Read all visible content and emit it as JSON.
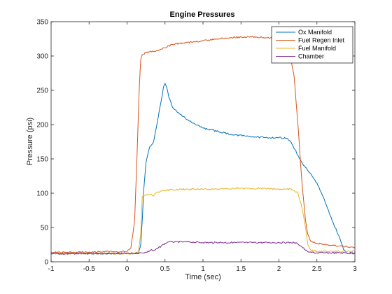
{
  "chart_data": {
    "type": "line",
    "title": "Engine Pressures",
    "xlabel": "Time (sec)",
    "ylabel": "Pressure (psi)",
    "xlim": [
      -1,
      3
    ],
    "ylim": [
      0,
      350
    ],
    "xticks": [
      -1,
      -0.5,
      0,
      0.5,
      1,
      1.5,
      2,
      2.5,
      3
    ],
    "xtick_labels": [
      "-1",
      "-0.5",
      "0",
      "0.5",
      "1",
      "1.5",
      "2",
      "2.5",
      "3"
    ],
    "yticks": [
      0,
      50,
      100,
      150,
      200,
      250,
      300,
      350
    ],
    "ytick_labels": [
      "0",
      "50",
      "100",
      "150",
      "200",
      "250",
      "300",
      "350"
    ],
    "grid": false,
    "legend_position": "top-right",
    "series": [
      {
        "name": "Ox Manifold",
        "color": "#0072BD",
        "x": [
          -1,
          -0.5,
          0,
          0.1,
          0.15,
          0.18,
          0.2,
          0.22,
          0.25,
          0.3,
          0.35,
          0.4,
          0.45,
          0.48,
          0.5,
          0.52,
          0.55,
          0.6,
          0.7,
          0.8,
          0.9,
          1.0,
          1.2,
          1.4,
          1.6,
          1.8,
          2.0,
          2.1,
          2.15,
          2.2,
          2.25,
          2.3,
          2.4,
          2.5,
          2.6,
          2.7,
          2.8,
          2.85,
          2.9,
          3.0
        ],
        "y": [
          12,
          12,
          12,
          12,
          13,
          25,
          60,
          105,
          145,
          168,
          175,
          205,
          235,
          255,
          260,
          255,
          240,
          225,
          215,
          207,
          200,
          195,
          190,
          185,
          183,
          181,
          181,
          180,
          176,
          165,
          155,
          145,
          130,
          115,
          90,
          60,
          35,
          18,
          12,
          12
        ]
      },
      {
        "name": "Fuel Regen Inlet",
        "color": "#D95319",
        "x": [
          -1,
          -0.5,
          -0.2,
          0,
          0.05,
          0.1,
          0.13,
          0.16,
          0.18,
          0.2,
          0.25,
          0.3,
          0.4,
          0.5,
          0.6,
          0.8,
          1.0,
          1.2,
          1.4,
          1.6,
          1.8,
          2.0,
          2.1,
          2.15,
          2.2,
          2.25,
          2.3,
          2.35,
          2.38,
          2.42,
          2.5,
          2.6,
          2.7,
          2.8,
          2.9,
          3.0
        ],
        "y": [
          14,
          14,
          15,
          15,
          20,
          60,
          150,
          250,
          295,
          302,
          305,
          306,
          308,
          312,
          317,
          320,
          322,
          325,
          327,
          328,
          327,
          325,
          318,
          300,
          270,
          200,
          120,
          60,
          40,
          30,
          27,
          25,
          24,
          23,
          22,
          21
        ]
      },
      {
        "name": "Fuel Manifold",
        "color": "#EDB120",
        "x": [
          -1,
          -0.5,
          0,
          0.1,
          0.15,
          0.18,
          0.2,
          0.25,
          0.3,
          0.35,
          0.4,
          0.5,
          0.6,
          0.8,
          1.0,
          1.2,
          1.4,
          1.6,
          1.8,
          2.0,
          2.1,
          2.15,
          2.2,
          2.25,
          2.3,
          2.35,
          2.38,
          2.42,
          2.5,
          2.6,
          2.7,
          2.8,
          2.9,
          3.0
        ],
        "y": [
          12,
          12,
          12,
          12,
          14,
          40,
          95,
          98,
          98,
          96,
          102,
          104,
          105,
          106,
          106,
          106,
          107,
          107,
          107,
          106,
          106,
          106,
          104,
          100,
          80,
          50,
          25,
          17,
          15,
          15,
          15,
          15,
          15,
          15
        ]
      },
      {
        "name": "Chamber",
        "color": "#7E2F8E",
        "x": [
          -1,
          -0.5,
          0,
          0.2,
          0.25,
          0.3,
          0.32,
          0.35,
          0.4,
          0.45,
          0.5,
          0.55,
          0.6,
          0.8,
          1.0,
          1.2,
          1.4,
          1.6,
          1.8,
          2.0,
          2.1,
          2.2,
          2.25,
          2.3,
          2.35,
          2.4,
          2.5,
          2.6,
          2.8,
          3.0
        ],
        "y": [
          12,
          12,
          12,
          13,
          14,
          16,
          18,
          16,
          19,
          23,
          27,
          29,
          29,
          29,
          28,
          28,
          28,
          28,
          28,
          28,
          28,
          28,
          26,
          22,
          17,
          14,
          13,
          13,
          13,
          13
        ]
      }
    ]
  }
}
